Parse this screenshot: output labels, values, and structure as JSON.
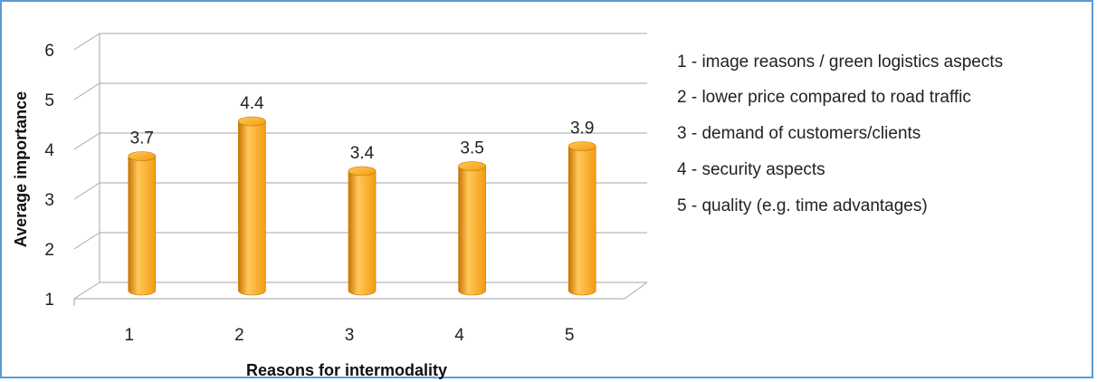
{
  "chart_data": {
    "type": "bar",
    "title": "",
    "xlabel": "Reasons for intermodality",
    "ylabel": "Average importance",
    "categories": [
      "1",
      "2",
      "3",
      "4",
      "5"
    ],
    "values": [
      3.7,
      4.4,
      3.4,
      3.5,
      3.9
    ],
    "data_labels": [
      "3.7",
      "4.4",
      "3.4",
      "3.5",
      "3.9"
    ],
    "ylim": [
      1,
      6
    ],
    "yticks": [
      "1",
      "2",
      "3",
      "4",
      "5",
      "6"
    ],
    "grid": true,
    "legend_position": "right",
    "legend": [
      "1 - image reasons / green logistics aspects",
      "2 - lower price compared to road traffic",
      "3 - demand of customers/clients",
      "4 - security aspects",
      "5 - quality (e.g. time advantages)"
    ],
    "bar_color": "#f39c12",
    "bar_dark_color": "#c87400",
    "bar_light_color": "#ffc85a",
    "frame_color": "#5b9bd5",
    "grid_color": "#a6a6a6"
  }
}
